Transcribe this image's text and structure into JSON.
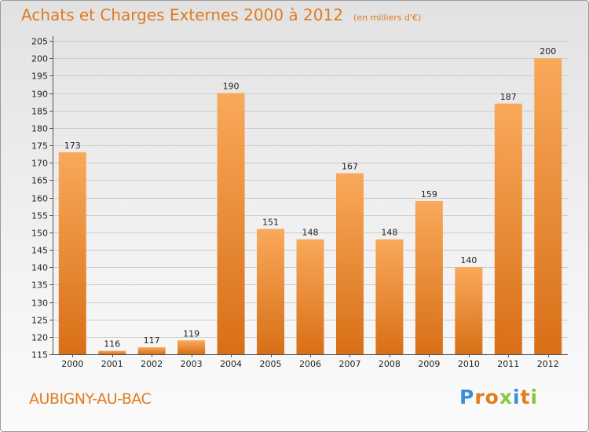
{
  "title": "Achats et Charges Externes 2000 à 2012",
  "unit": "(en milliers d'€)",
  "commune": "AUBIGNY-AU-BAC",
  "logo": {
    "text": "Proxiti",
    "letters": [
      {
        "char": "P",
        "color": "#3a8fd8"
      },
      {
        "char": "r",
        "color": "#e57c1a"
      },
      {
        "char": "o",
        "color": "#e57c1a"
      },
      {
        "char": "x",
        "color": "#8cc63f"
      },
      {
        "char": "i",
        "color": "#3a8fd8"
      },
      {
        "char": "t",
        "color": "#e57c1a"
      },
      {
        "char": "i",
        "color": "#8cc63f"
      }
    ]
  },
  "colors": {
    "accent": "#e07a1f",
    "bar_top": "#f9a95a",
    "bar_bottom": "#d86f17",
    "grid": "#cccccc",
    "axis_text": "#222222"
  },
  "chart_data": {
    "type": "bar",
    "title": "Achats et Charges Externes 2000 à 2012",
    "subtitle": "(en milliers d'€)",
    "xlabel": "",
    "ylabel": "",
    "categories": [
      "2000",
      "2001",
      "2002",
      "2003",
      "2004",
      "2005",
      "2006",
      "2007",
      "2008",
      "2009",
      "2010",
      "2011",
      "2012"
    ],
    "values": [
      173,
      116,
      117,
      119,
      190,
      151,
      148,
      167,
      148,
      159,
      140,
      187,
      200
    ],
    "ylim": [
      115,
      205
    ],
    "yticks": [
      115,
      120,
      125,
      130,
      135,
      140,
      145,
      150,
      155,
      160,
      165,
      170,
      175,
      180,
      185,
      190,
      195,
      200,
      205
    ],
    "grid": true,
    "legend": "none"
  }
}
